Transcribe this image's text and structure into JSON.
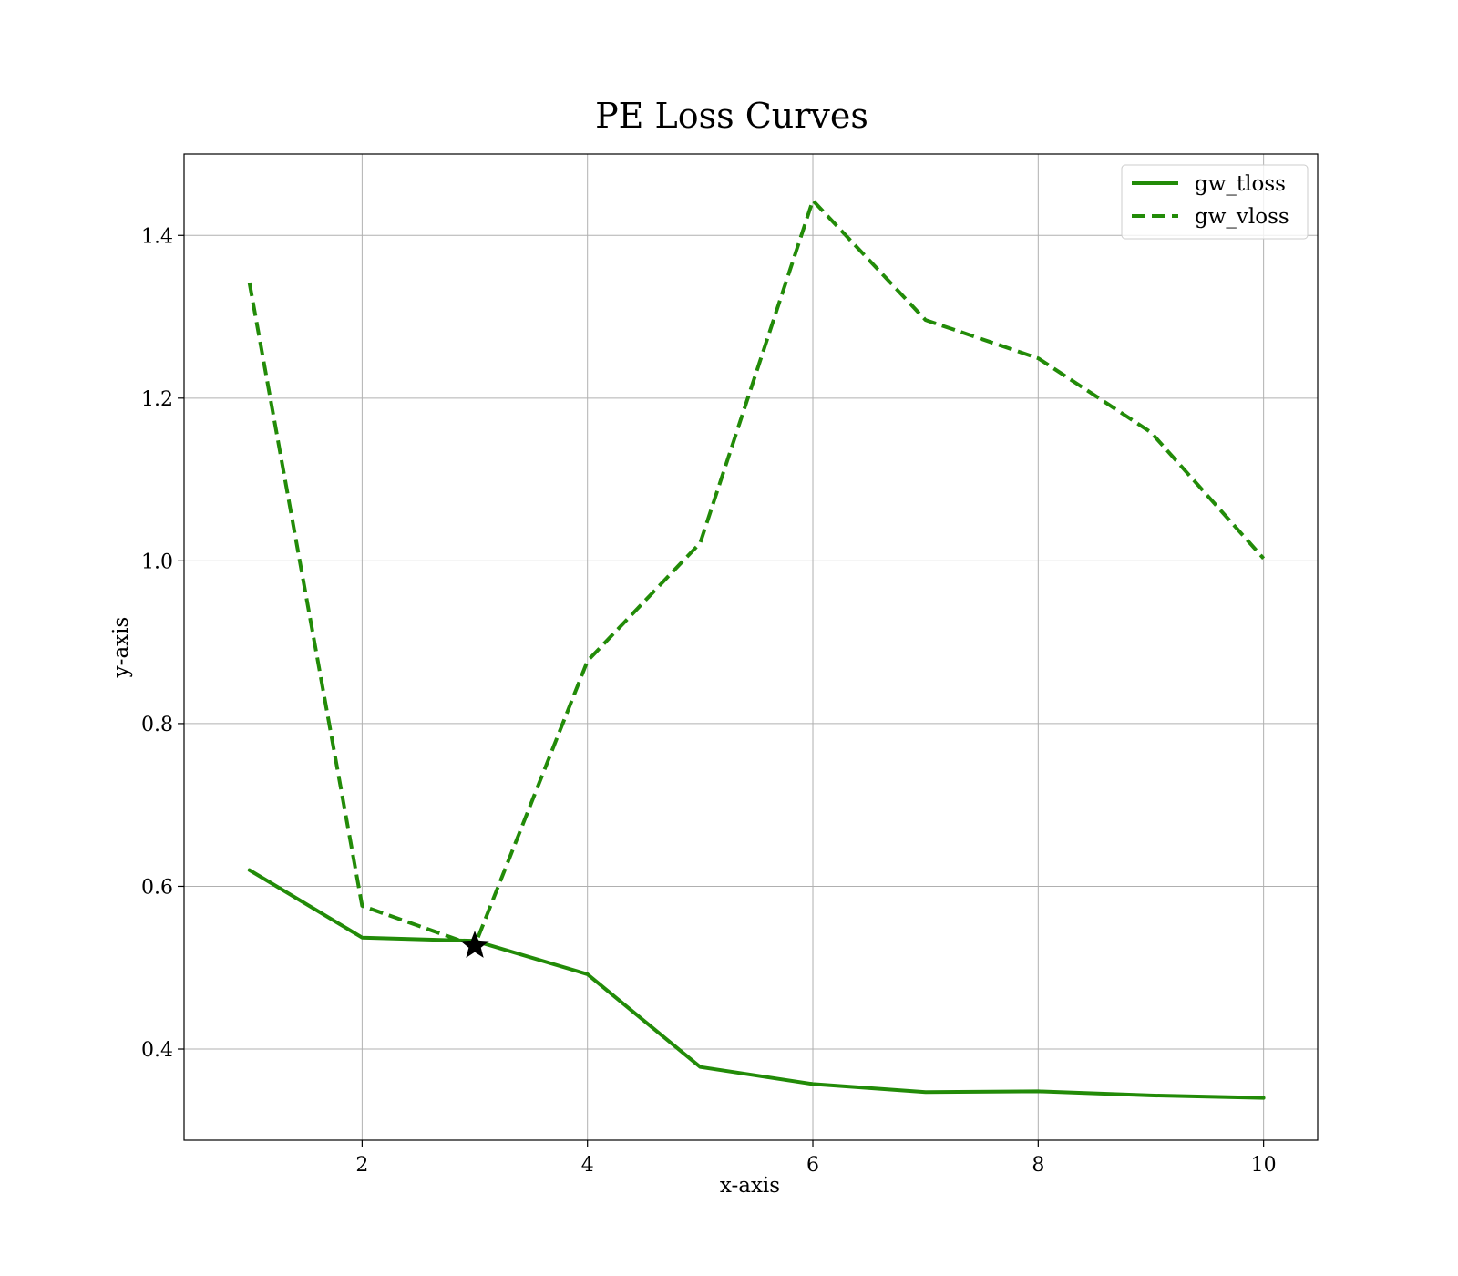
{
  "chart_data": {
    "type": "line",
    "title": "PE Loss Curves",
    "xlabel": "x-axis",
    "ylabel": "y-axis",
    "xlim": [
      0.42,
      10.48
    ],
    "ylim": [
      0.288,
      1.5
    ],
    "xticks": [
      2,
      4,
      6,
      8,
      10
    ],
    "yticks": [
      0.4,
      0.6,
      0.8,
      1.0,
      1.2,
      1.4
    ],
    "xtick_labels": [
      "2",
      "4",
      "6",
      "8",
      "10"
    ],
    "ytick_labels": [
      "0.4",
      "0.6",
      "0.8",
      "1.0",
      "1.2",
      "1.4"
    ],
    "grid": true,
    "legend_position": "top-right",
    "x": [
      1,
      2,
      3,
      4,
      5,
      6,
      7,
      8,
      9,
      10
    ],
    "series": [
      {
        "name": "gw_tloss",
        "style": "solid",
        "color": "#228b08",
        "values": [
          0.62,
          0.537,
          0.533,
          0.492,
          0.378,
          0.357,
          0.347,
          0.348,
          0.343,
          0.34
        ]
      },
      {
        "name": "gw_vloss",
        "style": "dashed",
        "color": "#228b08",
        "values": [
          1.342,
          0.576,
          0.527,
          0.877,
          1.022,
          1.443,
          1.296,
          1.249,
          1.158,
          1.003
        ]
      }
    ],
    "markers": [
      {
        "shape": "star",
        "x": 3,
        "y": 0.527,
        "color": "#000000"
      }
    ]
  }
}
